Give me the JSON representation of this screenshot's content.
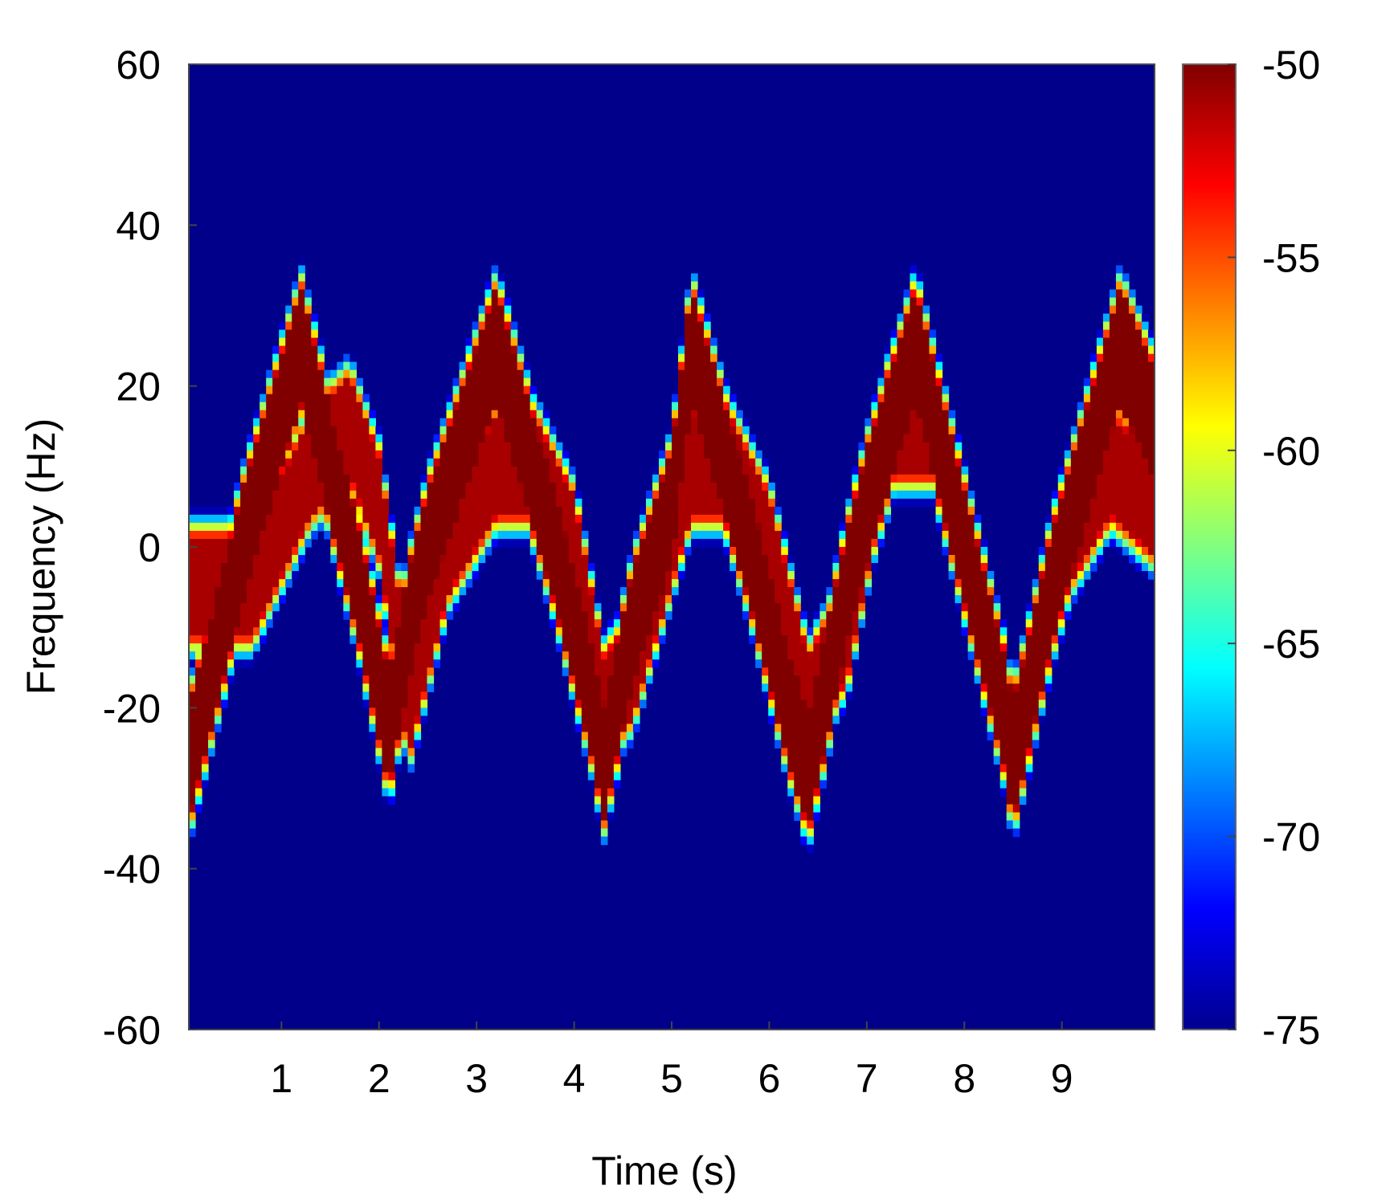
{
  "chart_data": {
    "type": "heatmap",
    "title": "",
    "xlabel": "Time (s)",
    "ylabel": "Frequency (Hz)",
    "xlim": [
      0.05,
      9.95
    ],
    "ylim": [
      -60,
      60
    ],
    "xticks": [
      1,
      2,
      3,
      4,
      5,
      6,
      7,
      8,
      9
    ],
    "yticks": [
      60,
      40,
      20,
      0,
      -20,
      -40,
      -60
    ],
    "colorbar": {
      "colormap": "jet",
      "range": [
        -75,
        -50
      ],
      "ticks": [
        -50,
        -55,
        -60,
        -65,
        -70,
        -75
      ]
    },
    "background_value": -75,
    "ridges": [
      {
        "name": "",
        "peak_value": -50,
        "half_width_hz": 7,
        "points": [
          [
            0.05,
            -27
          ],
          [
            0.6,
            0
          ],
          [
            1.2,
            25
          ],
          [
            1.8,
            -5
          ],
          [
            2.1,
            -23
          ],
          [
            2.3,
            -10
          ],
          [
            2.5,
            0
          ],
          [
            3.2,
            25
          ],
          [
            3.8,
            0
          ],
          [
            4.2,
            -20
          ],
          [
            4.3,
            -27
          ],
          [
            4.6,
            -10
          ],
          [
            5.0,
            5
          ],
          [
            5.2,
            25
          ],
          [
            5.8,
            0
          ],
          [
            6.2,
            -20
          ],
          [
            6.4,
            -28
          ],
          [
            6.8,
            -5
          ],
          [
            7.0,
            5
          ],
          [
            7.5,
            25
          ],
          [
            8.0,
            0
          ],
          [
            8.4,
            -20
          ],
          [
            8.5,
            -27
          ],
          [
            8.9,
            -5
          ],
          [
            9.6,
            25
          ],
          [
            9.95,
            15
          ]
        ]
      },
      {
        "name": "",
        "peak_value": -51,
        "half_width_hz": 6,
        "points": [
          [
            0.7,
            -5
          ],
          [
            1.3,
            10
          ],
          [
            1.7,
            15
          ],
          [
            2.0,
            5
          ],
          [
            2.3,
            -20
          ],
          [
            2.7,
            0
          ],
          [
            3.2,
            10
          ],
          [
            3.6,
            10
          ],
          [
            4.0,
            0
          ],
          [
            4.3,
            -20
          ],
          [
            4.6,
            -15
          ],
          [
            5.2,
            10
          ],
          [
            5.6,
            10
          ],
          [
            6.0,
            0
          ],
          [
            6.4,
            -20
          ],
          [
            6.8,
            -10
          ],
          [
            7.2,
            15
          ],
          [
            7.7,
            15
          ],
          [
            8.0,
            0
          ],
          [
            8.5,
            -25
          ],
          [
            9.0,
            0
          ],
          [
            9.5,
            10
          ],
          [
            9.95,
            5
          ]
        ]
      }
    ],
    "colors": {
      "background": "#00008b",
      "ridge_core": "#800000"
    }
  }
}
